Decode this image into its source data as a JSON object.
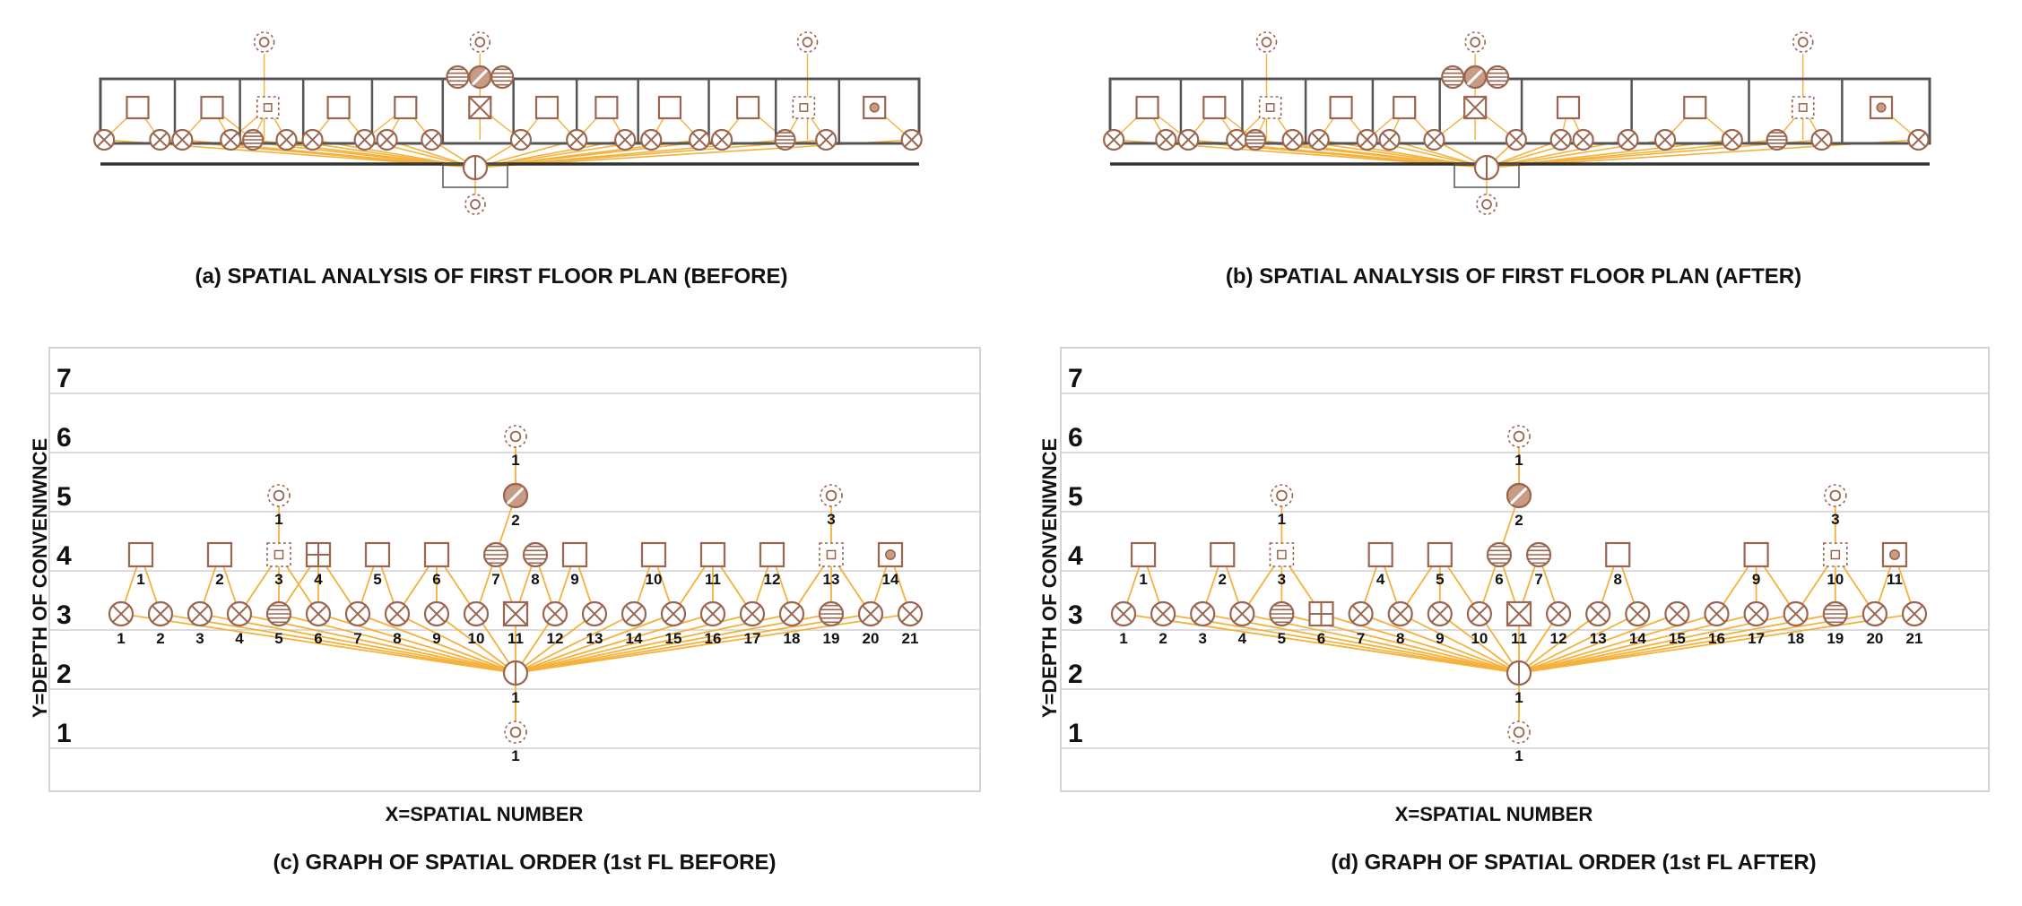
{
  "colors": {
    "edge": "#f4b13c",
    "node": "#9a6650",
    "node_fill": "#c89b85",
    "wall": "#555555",
    "grid": "#cfcfcf",
    "frame": "#d4d4d4"
  },
  "panels": {
    "a": {
      "caption": "(a) SPATIAL ANALYSIS OF FIRST FLOOR PLAN (BEFORE)"
    },
    "b": {
      "caption": "(b) SPATIAL ANALYSIS OF FIRST FLOOR PLAN  (AFTER)"
    },
    "c": {
      "caption": "(c) GRAPH OF SPATIAL ORDER (1st FL BEFORE)"
    },
    "d": {
      "caption": "(d) GRAPH OF SPATIAL ORDER (1st FL AFTER)"
    }
  },
  "axes": {
    "y_title": "Y=DEPTH OF CONVENIWNCE",
    "x_title": "X=SPATIAL NUMBER",
    "y_ticks": [
      "1",
      "2",
      "3",
      "4",
      "5",
      "6",
      "7"
    ]
  },
  "chart_data": [
    {
      "type": "graph",
      "id": "c",
      "ylim": [
        0,
        7.5
      ],
      "levels": {
        "d1": [
          {
            "label": "1",
            "x": 11,
            "icon": "sun"
          }
        ],
        "d2": [
          {
            "label": "1",
            "x": 11,
            "icon": "half"
          }
        ],
        "d3": [
          {
            "label": "1",
            "x": 1,
            "icon": "cross"
          },
          {
            "label": "2",
            "x": 2,
            "icon": "cross"
          },
          {
            "label": "3",
            "x": 3,
            "icon": "cross"
          },
          {
            "label": "4",
            "x": 4,
            "icon": "cross"
          },
          {
            "label": "5",
            "x": 5,
            "icon": "stripe"
          },
          {
            "label": "6",
            "x": 6,
            "icon": "cross"
          },
          {
            "label": "7",
            "x": 7,
            "icon": "cross"
          },
          {
            "label": "8",
            "x": 8,
            "icon": "cross"
          },
          {
            "label": "9",
            "x": 9,
            "icon": "cross"
          },
          {
            "label": "10",
            "x": 10,
            "icon": "cross"
          },
          {
            "label": "11",
            "x": 11,
            "icon": "boxx"
          },
          {
            "label": "12",
            "x": 12,
            "icon": "cross"
          },
          {
            "label": "13",
            "x": 13,
            "icon": "cross"
          },
          {
            "label": "14",
            "x": 14,
            "icon": "cross"
          },
          {
            "label": "15",
            "x": 15,
            "icon": "cross"
          },
          {
            "label": "16",
            "x": 16,
            "icon": "cross"
          },
          {
            "label": "17",
            "x": 17,
            "icon": "cross"
          },
          {
            "label": "18",
            "x": 18,
            "icon": "cross"
          },
          {
            "label": "19",
            "x": 19,
            "icon": "stripe"
          },
          {
            "label": "20",
            "x": 20,
            "icon": "cross"
          },
          {
            "label": "21",
            "x": 21,
            "icon": "cross"
          }
        ],
        "d4": [
          {
            "label": "1",
            "x": 1.5,
            "icon": "square"
          },
          {
            "label": "2",
            "x": 3.5,
            "icon": "square"
          },
          {
            "label": "3",
            "x": 5,
            "icon": "dashsq"
          },
          {
            "label": "4",
            "x": 6,
            "icon": "grid"
          },
          {
            "label": "5",
            "x": 7.5,
            "icon": "square"
          },
          {
            "label": "6",
            "x": 9,
            "icon": "square"
          },
          {
            "label": "7",
            "x": 10.5,
            "icon": "stripe"
          },
          {
            "label": "8",
            "x": 11.5,
            "icon": "stripe"
          },
          {
            "label": "9",
            "x": 12.5,
            "icon": "square"
          },
          {
            "label": "10",
            "x": 14.5,
            "icon": "square"
          },
          {
            "label": "11",
            "x": 16,
            "icon": "square"
          },
          {
            "label": "12",
            "x": 17.5,
            "icon": "square"
          },
          {
            "label": "13",
            "x": 19,
            "icon": "dashsq"
          },
          {
            "label": "14",
            "x": 20.5,
            "icon": "sqdot"
          }
        ],
        "d5": [
          {
            "label": "1",
            "x": 5,
            "icon": "sun"
          },
          {
            "label": "2",
            "x": 11,
            "icon": "diag"
          },
          {
            "label": "3",
            "x": 19,
            "icon": "sun"
          }
        ],
        "d6": [
          {
            "label": "1",
            "x": 11,
            "icon": "sun"
          }
        ]
      }
    },
    {
      "type": "graph",
      "id": "d",
      "ylim": [
        0,
        7.5
      ],
      "levels": {
        "d1": [
          {
            "label": "1",
            "x": 11,
            "icon": "sun"
          }
        ],
        "d2": [
          {
            "label": "1",
            "x": 11,
            "icon": "half"
          }
        ],
        "d3": [
          {
            "label": "1",
            "x": 1,
            "icon": "cross"
          },
          {
            "label": "2",
            "x": 2,
            "icon": "cross"
          },
          {
            "label": "3",
            "x": 3,
            "icon": "cross"
          },
          {
            "label": "4",
            "x": 4,
            "icon": "cross"
          },
          {
            "label": "5",
            "x": 5,
            "icon": "stripe"
          },
          {
            "label": "6",
            "x": 6,
            "icon": "grid"
          },
          {
            "label": "7",
            "x": 7,
            "icon": "cross"
          },
          {
            "label": "8",
            "x": 8,
            "icon": "cross"
          },
          {
            "label": "9",
            "x": 9,
            "icon": "cross"
          },
          {
            "label": "10",
            "x": 10,
            "icon": "cross"
          },
          {
            "label": "11",
            "x": 11,
            "icon": "boxx"
          },
          {
            "label": "12",
            "x": 12,
            "icon": "cross"
          },
          {
            "label": "13",
            "x": 13,
            "icon": "cross"
          },
          {
            "label": "14",
            "x": 14,
            "icon": "cross"
          },
          {
            "label": "15",
            "x": 15,
            "icon": "cross"
          },
          {
            "label": "16",
            "x": 16,
            "icon": "cross"
          },
          {
            "label": "17",
            "x": 17,
            "icon": "cross"
          },
          {
            "label": "18",
            "x": 18,
            "icon": "cross"
          },
          {
            "label": "19",
            "x": 19,
            "icon": "stripe"
          },
          {
            "label": "20",
            "x": 20,
            "icon": "cross"
          },
          {
            "label": "21",
            "x": 21,
            "icon": "cross"
          }
        ],
        "d4": [
          {
            "label": "1",
            "x": 1.5,
            "icon": "square"
          },
          {
            "label": "2",
            "x": 3.5,
            "icon": "square"
          },
          {
            "label": "3",
            "x": 5,
            "icon": "dashsq"
          },
          {
            "label": "4",
            "x": 7.5,
            "icon": "square"
          },
          {
            "label": "5",
            "x": 9,
            "icon": "square"
          },
          {
            "label": "6",
            "x": 10.5,
            "icon": "stripe"
          },
          {
            "label": "7",
            "x": 11.5,
            "icon": "stripe"
          },
          {
            "label": "8",
            "x": 13.5,
            "icon": "square"
          },
          {
            "label": "9",
            "x": 17,
            "icon": "square"
          },
          {
            "label": "10",
            "x": 19,
            "icon": "dashsq"
          },
          {
            "label": "11",
            "x": 20.5,
            "icon": "sqdot"
          }
        ],
        "d5": [
          {
            "label": "1",
            "x": 5,
            "icon": "sun"
          },
          {
            "label": "2",
            "x": 11,
            "icon": "diag"
          },
          {
            "label": "3",
            "x": 19,
            "icon": "sun"
          }
        ],
        "d6": [
          {
            "label": "1",
            "x": 11,
            "icon": "sun"
          }
        ]
      }
    }
  ],
  "plans": [
    {
      "id": "a",
      "rooms": [
        {
          "icon": "square",
          "u": 0.5
        },
        {
          "icon": "square",
          "u": 1.5
        },
        {
          "icon": "dashsq",
          "u": 2.25
        },
        {
          "icon": "square",
          "u": 3.2
        },
        {
          "icon": "square",
          "u": 4.1
        },
        {
          "icon": "boxx",
          "u": 5.1
        },
        {
          "icon": "square",
          "u": 6.0
        },
        {
          "icon": "square",
          "u": 6.8
        },
        {
          "icon": "square",
          "u": 7.65
        },
        {
          "icon": "square",
          "u": 8.7
        },
        {
          "icon": "dashsq",
          "u": 9.45
        },
        {
          "icon": "sqdot",
          "u": 10.4
        }
      ],
      "tops": [
        {
          "icon": "sun",
          "u": 2.2
        },
        {
          "icon": "sun",
          "u": 5.1
        },
        {
          "icon": "sun",
          "u": 9.5
        }
      ],
      "stair_tops": [
        {
          "icon": "stripe",
          "u": 4.8
        },
        {
          "icon": "diag",
          "u": 5.1
        },
        {
          "icon": "stripe",
          "u": 5.4
        }
      ],
      "bottom": [
        {
          "icon": "cross",
          "u": 0.05
        },
        {
          "icon": "cross",
          "u": 0.8
        },
        {
          "icon": "cross",
          "u": 1.1
        },
        {
          "icon": "cross",
          "u": 1.75
        },
        {
          "icon": "stripe",
          "u": 2.05
        },
        {
          "icon": "cross",
          "u": 2.5
        },
        {
          "icon": "cross",
          "u": 2.85
        },
        {
          "icon": "cross",
          "u": 3.55
        },
        {
          "icon": "cross",
          "u": 3.85
        },
        {
          "icon": "cross",
          "u": 4.45
        },
        {
          "icon": "cross",
          "u": 5.65
        },
        {
          "icon": "cross",
          "u": 6.4
        },
        {
          "icon": "cross",
          "u": 7.05
        },
        {
          "icon": "cross",
          "u": 7.4
        },
        {
          "icon": "cross",
          "u": 8.05
        },
        {
          "icon": "cross",
          "u": 8.35
        },
        {
          "icon": "stripe",
          "u": 9.2
        },
        {
          "icon": "cross",
          "u": 9.75
        },
        {
          "icon": "cross",
          "u": 10.9
        }
      ]
    },
    {
      "id": "b",
      "rooms": [
        {
          "icon": "square",
          "u": 0.5
        },
        {
          "icon": "square",
          "u": 1.4
        },
        {
          "icon": "dashsq",
          "u": 2.15
        },
        {
          "icon": "square",
          "u": 3.1
        },
        {
          "icon": "square",
          "u": 3.95
        },
        {
          "icon": "boxx",
          "u": 4.9
        },
        {
          "icon": "square",
          "u": 6.15
        },
        {
          "icon": "square",
          "u": 7.85
        },
        {
          "icon": "dashsq",
          "u": 9.3
        },
        {
          "icon": "sqdot",
          "u": 10.35
        }
      ],
      "tops": [
        {
          "icon": "sun",
          "u": 2.1
        },
        {
          "icon": "sun",
          "u": 4.9
        },
        {
          "icon": "sun",
          "u": 9.3
        }
      ],
      "stair_tops": [
        {
          "icon": "stripe",
          "u": 4.6
        },
        {
          "icon": "diag",
          "u": 4.9
        },
        {
          "icon": "stripe",
          "u": 5.2
        }
      ],
      "bottom": [
        {
          "icon": "cross",
          "u": 0.05
        },
        {
          "icon": "cross",
          "u": 0.75
        },
        {
          "icon": "cross",
          "u": 1.05
        },
        {
          "icon": "cross",
          "u": 1.7
        },
        {
          "icon": "stripe",
          "u": 1.95
        },
        {
          "icon": "cross",
          "u": 2.45
        },
        {
          "icon": "cross",
          "u": 2.8
        },
        {
          "icon": "cross",
          "u": 3.45
        },
        {
          "icon": "cross",
          "u": 3.75
        },
        {
          "icon": "cross",
          "u": 4.35
        },
        {
          "icon": "cross",
          "u": 5.45
        },
        {
          "icon": "cross",
          "u": 6.05
        },
        {
          "icon": "cross",
          "u": 6.35
        },
        {
          "icon": "cross",
          "u": 6.95
        },
        {
          "icon": "cross",
          "u": 7.45
        },
        {
          "icon": "cross",
          "u": 8.35
        },
        {
          "icon": "stripe",
          "u": 8.95
        },
        {
          "icon": "cross",
          "u": 9.55
        },
        {
          "icon": "cross",
          "u": 10.85
        }
      ]
    }
  ]
}
